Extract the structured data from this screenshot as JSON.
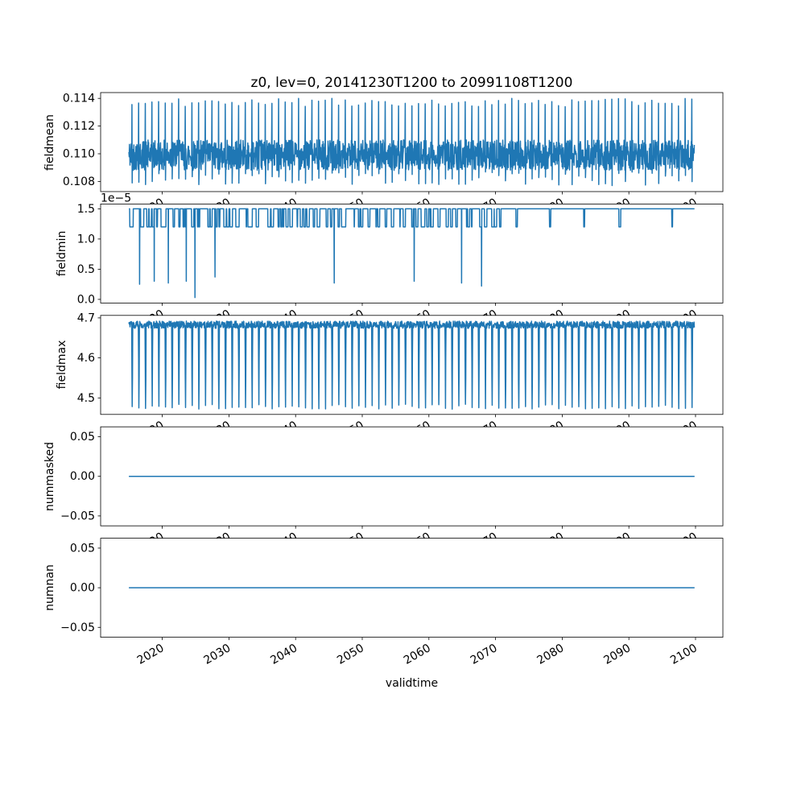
{
  "figure": {
    "title": "z0, lev=0, 20141230T1200 to 20991108T1200",
    "xlabel": "validtime",
    "line_color": "#1f77b4",
    "axis_color": "#000000",
    "background": "#ffffff",
    "xlim": [
      2010.75,
      2104.11
    ],
    "x_start": 2014.99,
    "x_end": 2099.86,
    "x_ticks": [
      2020,
      2030,
      2040,
      2050,
      2060,
      2070,
      2080,
      2090,
      2100
    ],
    "x_tick_labels": [
      "2020",
      "2030",
      "2040",
      "2050",
      "2060",
      "2070",
      "2080",
      "2090",
      "2100"
    ]
  },
  "chart_data": [
    {
      "type": "line",
      "series_name": "fieldmean",
      "ylabel": "fieldmean",
      "yticks": [
        0.108,
        0.11,
        0.112,
        0.114
      ],
      "ytick_labels": [
        "0.108",
        "0.110",
        "0.112",
        "0.114"
      ],
      "ylim": [
        0.10727,
        0.11442
      ],
      "x_ticks": [
        2020,
        2030,
        2040,
        2050,
        2060,
        2070,
        2080,
        2090,
        2100
      ],
      "pattern": {
        "kind": "annual_spikes",
        "samples_per_year": 24,
        "baseline": 0.1099,
        "noise": 0.0011,
        "spike_high": 0.114,
        "spike_low": 0.1077,
        "description": "dense annual oscillation around 0.110 with yearly spikes up to ~0.114 and down to ~0.1077"
      }
    },
    {
      "type": "line",
      "series_name": "fieldmin",
      "ylabel": "fieldmin",
      "offset_text": "1e−5",
      "scale": "1e-5",
      "yticks": [
        0.0,
        0.5,
        1.0,
        1.5
      ],
      "ytick_labels": [
        "0.0",
        "0.5",
        "1.0",
        "1.5"
      ],
      "ylim": [
        -0.06,
        1.58
      ],
      "x_ticks": [
        2020,
        2030,
        2040,
        2050,
        2060,
        2070,
        2080,
        2090,
        2100
      ],
      "pattern": {
        "kind": "baseline_dips",
        "samples_per_year": 36,
        "baseline": 1.5,
        "shallow_dip_value": 1.2,
        "eras": [
          {
            "until": 2048,
            "dips_per_year": 2.2
          },
          {
            "until": 2070,
            "dips_per_year": 1.6
          },
          {
            "until": 2101,
            "dips_per_year": 0.12
          }
        ],
        "deep_dips": [
          {
            "x": 2016.6,
            "v": 0.25
          },
          {
            "x": 2018.8,
            "v": 0.3
          },
          {
            "x": 2020.9,
            "v": 0.27
          },
          {
            "x": 2023.6,
            "v": 0.3
          },
          {
            "x": 2024.9,
            "v": 0.03
          },
          {
            "x": 2027.9,
            "v": 0.37
          },
          {
            "x": 2045.8,
            "v": 0.27
          },
          {
            "x": 2057.8,
            "v": 0.3
          },
          {
            "x": 2064.9,
            "v": 0.27
          },
          {
            "x": 2067.9,
            "v": 0.22
          }
        ],
        "description": "mostly constant at 1.5e-5 with frequent short square dips to ~1.2e-5 (denser before ~2050, rare after ~2070) and occasional deep narrow dips toward 0"
      }
    },
    {
      "type": "line",
      "series_name": "fieldmax",
      "ylabel": "fieldmax",
      "yticks": [
        4.5,
        4.6,
        4.7
      ],
      "ytick_labels": [
        "4.5",
        "4.6",
        "4.7"
      ],
      "ylim": [
        4.4588,
        4.7063
      ],
      "x_ticks": [
        2020,
        2030,
        2040,
        2050,
        2060,
        2070,
        2080,
        2090,
        2100
      ],
      "pattern": {
        "kind": "annual_comb",
        "samples_per_year": 24,
        "top": 4.692,
        "top_noise": 0.018,
        "dip_low": 4.472,
        "dip_noise": 0.012,
        "description": "dense annual oscillation with tops near 4.69 and yearly dips to ~4.47"
      }
    },
    {
      "type": "line",
      "series_name": "nummasked",
      "ylabel": "nummasked",
      "yticks": [
        -0.05,
        0.0,
        0.05
      ],
      "ytick_labels": [
        "−0.05",
        "0.00",
        "0.05"
      ],
      "ylim": [
        -0.0625,
        0.0625
      ],
      "x_ticks": [
        2020,
        2030,
        2040,
        2050,
        2060,
        2070,
        2080,
        2090,
        2100
      ],
      "pattern": {
        "kind": "constant",
        "value": 0.0,
        "description": "constant zero over the full period"
      }
    },
    {
      "type": "line",
      "series_name": "numnan",
      "ylabel": "numnan",
      "yticks": [
        -0.05,
        0.0,
        0.05
      ],
      "ytick_labels": [
        "−0.05",
        "0.00",
        "0.05"
      ],
      "ylim": [
        -0.0625,
        0.0625
      ],
      "x_ticks": [
        2020,
        2030,
        2040,
        2050,
        2060,
        2070,
        2080,
        2090,
        2100
      ],
      "pattern": {
        "kind": "constant",
        "value": 0.0,
        "description": "constant zero over the full period"
      }
    }
  ]
}
